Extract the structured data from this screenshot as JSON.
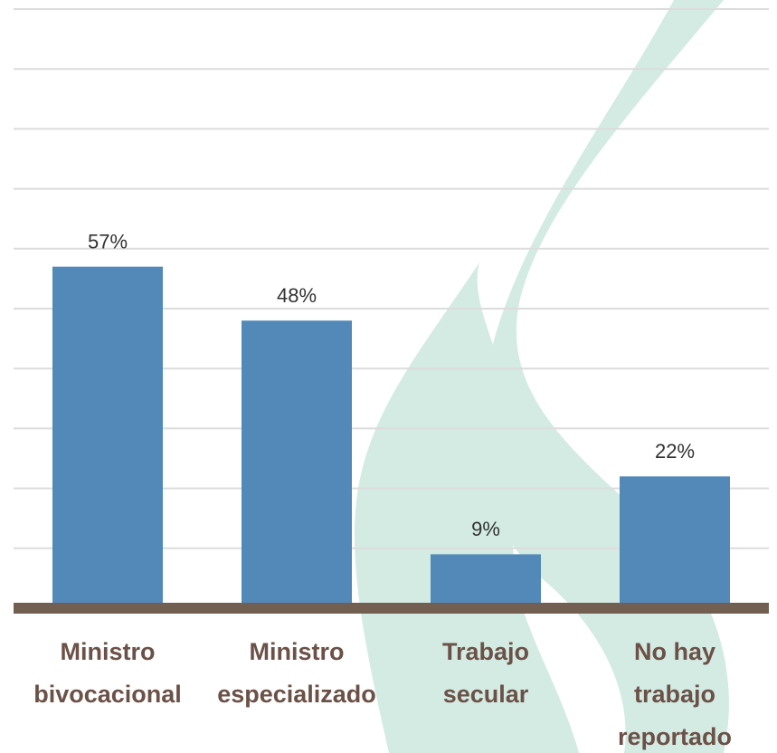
{
  "chart_data": {
    "type": "bar",
    "categories": [
      [
        "Ministro",
        "bivocacional"
      ],
      [
        "Ministro",
        "especializado"
      ],
      [
        "Trabajo",
        "secular"
      ],
      [
        "No hay",
        "trabajo",
        "reportado"
      ]
    ],
    "values": [
      57,
      48,
      9,
      22
    ],
    "value_labels": [
      "57%",
      "48%",
      "9%",
      "22%"
    ],
    "color": "#5289b9",
    "ylim": [
      0,
      100
    ],
    "yticks": [
      0,
      10,
      20,
      30,
      40,
      50,
      60,
      70,
      80,
      90,
      100
    ],
    "grid": true
  }
}
